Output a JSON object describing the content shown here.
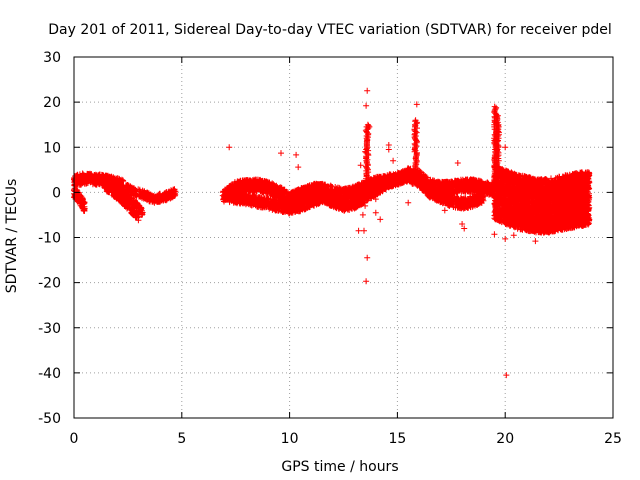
{
  "chart_data": {
    "type": "scatter",
    "title": "Day 201 of 2011, Sidereal Day-to-day VTEC variation (SDTVAR) for receiver pdel",
    "xlabel": "GPS time / hours",
    "ylabel": "SDTVAR / TECUs",
    "xlim": [
      0,
      25
    ],
    "ylim": [
      -50,
      30
    ],
    "xticks": [
      0,
      5,
      10,
      15,
      20,
      25
    ],
    "yticks": [
      -50,
      -40,
      -30,
      -20,
      -10,
      0,
      10,
      20,
      30
    ],
    "grid": true,
    "marker": "+",
    "color": "#ff0000",
    "series": [
      {
        "name": "SDTVAR",
        "bands": [
          {
            "x": [
              0.0,
              0.4,
              0.8,
              1.2,
              1.6,
              2.0,
              2.3
            ],
            "y": [
              2.5,
              3.0,
              3.0,
              2.8,
              2.5,
              2.0,
              1.5
            ],
            "spread": 1.2
          },
          {
            "x": [
              0.0,
              0.2,
              0.4,
              0.5
            ],
            "y": [
              0.0,
              -1.0,
              -2.5,
              -3.5
            ],
            "spread": 1.2
          },
          {
            "x": [
              1.4,
              1.8,
              2.2,
              2.6,
              3.0
            ],
            "y": [
              1.5,
              0.0,
              -1.5,
              -3.5,
              -5.5
            ],
            "spread": 0.8
          },
          {
            "x": [
              1.8,
              2.3,
              2.8,
              3.2
            ],
            "y": [
              1.0,
              -0.5,
              -2.5,
              -4.5
            ],
            "spread": 0.8
          },
          {
            "x": [
              2.4,
              2.8,
              3.2,
              3.7,
              4.2,
              4.7
            ],
            "y": [
              1.0,
              0.0,
              -0.5,
              -1.5,
              -1.0,
              0.0
            ],
            "spread": 0.9
          },
          {
            "x": [
              6.9,
              7.5,
              8.0,
              8.5,
              9.0,
              9.5,
              10.0,
              10.5,
              11.0,
              11.5,
              12.0,
              12.5,
              13.0,
              13.5,
              14.0,
              14.5,
              15.0,
              15.5,
              16.0,
              16.5,
              17.0,
              17.5,
              18.0,
              18.5,
              19.0,
              19.5
            ],
            "y": [
              -1.0,
              1.0,
              1.5,
              1.5,
              1.0,
              0.0,
              -1.5,
              -0.5,
              0.5,
              0.5,
              0.0,
              -0.5,
              0.0,
              1.0,
              2.0,
              2.5,
              3.0,
              4.0,
              3.5,
              1.5,
              1.0,
              1.0,
              1.5,
              1.5,
              1.0,
              0.5
            ],
            "spread": 1.4
          },
          {
            "x": [
              7.2,
              8.0,
              9.0,
              9.5,
              10.0,
              10.5,
              11.0,
              11.5,
              12.0,
              12.5,
              13.0,
              13.5,
              14.0,
              14.5,
              15.0,
              15.5,
              16.0,
              16.5,
              17.0,
              17.5,
              18.0,
              18.5,
              19.0
            ],
            "y": [
              -1.0,
              -1.5,
              -2.5,
              -3.0,
              -3.5,
              -3.0,
              -2.0,
              -1.0,
              -2.0,
              -3.0,
              -2.5,
              -1.0,
              0.5,
              2.0,
              3.0,
              3.5,
              2.5,
              0.0,
              -1.0,
              -2.0,
              -2.5,
              -2.0,
              -1.0
            ],
            "spread": 1.2
          },
          {
            "x": [
              19.5,
              20.0,
              20.5,
              21.0,
              21.5,
              22.0,
              22.5,
              23.0,
              23.5,
              23.9
            ],
            "y": [
              0.0,
              -1.0,
              -2.0,
              -2.5,
              -3.0,
              -3.0,
              -2.5,
              -2.0,
              -1.5,
              -1.5
            ],
            "spread": 6.0
          }
        ],
        "spikes": [
          {
            "x": 13.6,
            "y_from": 0,
            "y_to": 15
          },
          {
            "x": 15.85,
            "y_from": 3,
            "y_to": 16
          },
          {
            "x": 19.55,
            "y_from": 2,
            "y_to": 19
          },
          {
            "x": 19.65,
            "y_from": 2,
            "y_to": 17
          }
        ],
        "outliers": [
          [
            7.2,
            10
          ],
          [
            9.6,
            8.7
          ],
          [
            10.3,
            8.3
          ],
          [
            10.4,
            5.6
          ],
          [
            10.6,
            0.8
          ],
          [
            13.6,
            22.5
          ],
          [
            13.55,
            19.2
          ],
          [
            13.7,
            14.5
          ],
          [
            13.5,
            9.0
          ],
          [
            13.3,
            6.0
          ],
          [
            13.5,
            -3.0
          ],
          [
            13.4,
            -5.0
          ],
          [
            13.45,
            -8.5
          ],
          [
            13.2,
            -8.5
          ],
          [
            13.6,
            -14.5
          ],
          [
            13.55,
            -19.7
          ],
          [
            14.0,
            -1.5
          ],
          [
            14.0,
            -4.5
          ],
          [
            14.2,
            -6.0
          ],
          [
            14.8,
            7.0
          ],
          [
            14.6,
            10.5
          ],
          [
            14.6,
            9.5
          ],
          [
            15.9,
            19.5
          ],
          [
            15.5,
            -2.3
          ],
          [
            17.2,
            -4.0
          ],
          [
            17.8,
            6.5
          ],
          [
            18.0,
            -7.0
          ],
          [
            18.1,
            -8.0
          ],
          [
            19.5,
            -9.3
          ],
          [
            20.0,
            -10.3
          ],
          [
            20.0,
            10.0
          ],
          [
            20.4,
            -9.5
          ],
          [
            21.4,
            -10.8
          ],
          [
            20.05,
            -40.5
          ],
          [
            23.4,
            3.3
          ],
          [
            23.9,
            -6.0
          ]
        ]
      }
    ]
  }
}
